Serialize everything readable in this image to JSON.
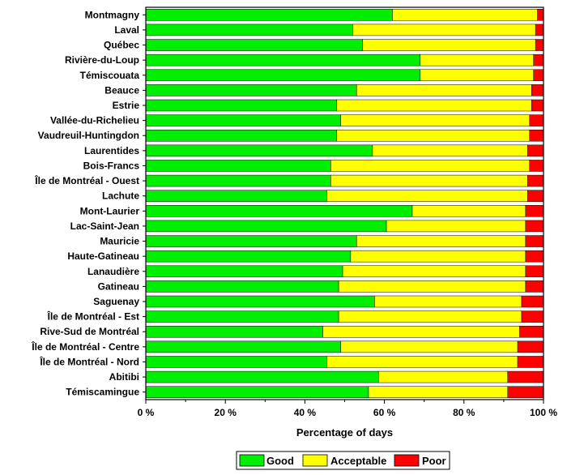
{
  "chart_data": {
    "type": "bar",
    "orientation": "horizontal",
    "stacked": true,
    "percent_stacked": true,
    "title": "",
    "xlabel": "Percentage of days",
    "ylabel": "",
    "xlim": [
      0,
      100
    ],
    "x_ticks": [
      0,
      20,
      40,
      60,
      80,
      100
    ],
    "x_tick_labels": [
      "0 %",
      "20 %",
      "40 %",
      "60 %",
      "80 %",
      "100 %"
    ],
    "grid": false,
    "legend_position": "bottom",
    "categories": [
      "Montmagny",
      "Laval",
      "Québec",
      "Rivière-du-Loup",
      "Témiscouata",
      "Beauce",
      "Estrie",
      "Vallée-du-Richelieu",
      "Vaudreuil-Huntingdon",
      "Laurentides",
      "Bois-Francs",
      "Île de Montréal - Ouest",
      "Lachute",
      "Mont-Laurier",
      "Lac-Saint-Jean",
      "Mauricie",
      "Haute-Gatineau",
      "Lanaudière",
      "Gatineau",
      "Saguenay",
      "Île de Montréal - Est",
      "Rive-Sud de Montréal",
      "Île de Montréal - Centre",
      "Île de Montréal - Nord",
      "Abitibi",
      "Témiscamingue"
    ],
    "series": [
      {
        "name": "Good",
        "color": "#00ee00",
        "values": [
          62,
          52,
          54.5,
          69,
          69,
          53,
          48,
          49,
          48,
          57,
          46.5,
          46.5,
          45.5,
          67,
          60.5,
          53,
          51.5,
          49.5,
          48.5,
          57.5,
          48.5,
          44.5,
          49,
          45.5,
          58.5,
          56
        ]
      },
      {
        "name": "Acceptable",
        "color": "#ffff00",
        "values": [
          36.5,
          46,
          43.5,
          28.5,
          28.5,
          44,
          49,
          47.5,
          48.5,
          39,
          50,
          49.5,
          50.5,
          28.5,
          35,
          42.5,
          44,
          46,
          47,
          37,
          46,
          49.5,
          44.5,
          48,
          32.5,
          35
        ]
      },
      {
        "name": "Poor",
        "color": "#ff0000",
        "values": [
          1.5,
          2,
          2,
          2.5,
          2.5,
          3,
          3,
          3.5,
          3.5,
          4,
          3.5,
          4,
          4,
          4.5,
          4.5,
          4.5,
          4.5,
          4.5,
          4.5,
          5.5,
          5.5,
          6,
          6.5,
          6.5,
          9,
          9
        ]
      }
    ]
  }
}
